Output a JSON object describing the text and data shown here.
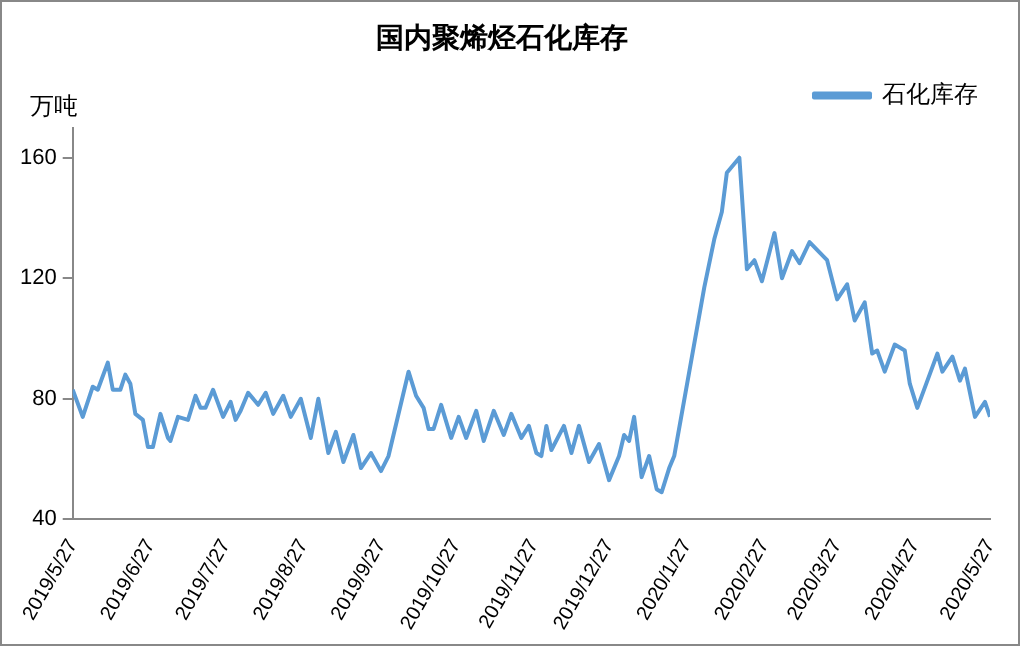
{
  "chart_data": {
    "type": "line",
    "title": "国内聚烯烃石化库存",
    "ylabel": "万吨",
    "x": [
      "2019-05-27",
      "2019-05-31",
      "2019-06-04",
      "2019-06-06",
      "2019-06-10",
      "2019-06-12",
      "2019-06-15",
      "2019-06-17",
      "2019-06-19",
      "2019-06-21",
      "2019-06-24",
      "2019-06-26",
      "2019-06-28",
      "2019-07-01",
      "2019-07-04",
      "2019-07-05",
      "2019-07-08",
      "2019-07-12",
      "2019-07-15",
      "2019-07-17",
      "2019-07-19",
      "2019-07-22",
      "2019-07-26",
      "2019-07-29",
      "2019-07-31",
      "2019-08-02",
      "2019-08-05",
      "2019-08-09",
      "2019-08-12",
      "2019-08-15",
      "2019-08-19",
      "2019-08-22",
      "2019-08-26",
      "2019-08-30",
      "2019-09-02",
      "2019-09-06",
      "2019-09-09",
      "2019-09-12",
      "2019-09-16",
      "2019-09-19",
      "2019-09-23",
      "2019-09-27",
      "2019-09-30",
      "2019-10-08",
      "2019-10-11",
      "2019-10-14",
      "2019-10-16",
      "2019-10-18",
      "2019-10-21",
      "2019-10-25",
      "2019-10-28",
      "2019-10-31",
      "2019-11-04",
      "2019-11-07",
      "2019-11-11",
      "2019-11-15",
      "2019-11-18",
      "2019-11-22",
      "2019-11-25",
      "2019-11-28",
      "2019-11-30",
      "2019-12-02",
      "2019-12-04",
      "2019-12-09",
      "2019-12-12",
      "2019-12-15",
      "2019-12-19",
      "2019-12-23",
      "2019-12-27",
      "2019-12-31",
      "2020-01-02",
      "2020-01-04",
      "2020-01-06",
      "2020-01-09",
      "2020-01-12",
      "2020-01-15",
      "2020-01-17",
      "2020-01-20",
      "2020-01-22",
      "2020-02-03",
      "2020-02-07",
      "2020-02-10",
      "2020-02-12",
      "2020-02-17",
      "2020-02-20",
      "2020-02-23",
      "2020-02-26",
      "2020-03-02",
      "2020-03-05",
      "2020-03-09",
      "2020-03-12",
      "2020-03-16",
      "2020-03-23",
      "2020-03-27",
      "2020-03-31",
      "2020-04-03",
      "2020-04-07",
      "2020-04-10",
      "2020-04-12",
      "2020-04-15",
      "2020-04-19",
      "2020-04-23",
      "2020-04-25",
      "2020-04-28",
      "2020-05-06",
      "2020-05-08",
      "2020-05-12",
      "2020-05-15",
      "2020-05-17",
      "2020-05-21",
      "2020-05-25",
      "2020-05-27"
    ],
    "series": [
      {
        "name": "石化库存",
        "color": "#5b9bd5",
        "values": [
          83,
          74,
          84,
          83,
          92,
          83,
          83,
          88,
          85,
          75,
          73,
          64,
          64,
          75,
          67,
          66,
          74,
          73,
          81,
          77,
          77,
          83,
          74,
          79,
          73,
          76,
          82,
          78,
          82,
          75,
          81,
          74,
          80,
          67,
          80,
          62,
          69,
          59,
          68,
          57,
          62,
          56,
          61,
          89,
          81,
          77,
          70,
          70,
          78,
          67,
          74,
          67,
          76,
          66,
          76,
          68,
          75,
          67,
          71,
          62,
          61,
          71,
          63,
          71,
          62,
          71,
          59,
          65,
          53,
          61,
          68,
          66,
          74,
          54,
          61,
          50,
          49,
          57,
          61,
          117,
          133,
          142,
          155,
          160,
          123,
          126,
          119,
          135,
          120,
          129,
          125,
          132,
          126,
          113,
          118,
          106,
          112,
          95,
          96,
          89,
          98,
          96,
          85,
          77,
          95,
          89,
          94,
          86,
          90,
          74,
          79,
          74
        ]
      }
    ],
    "xlim": [
      "2019-05-27",
      "2020-05-27"
    ],
    "xticks": [
      {
        "value": "2019-05-27",
        "label": "2019/5/27"
      },
      {
        "value": "2019-06-27",
        "label": "2019/6/27"
      },
      {
        "value": "2019-07-27",
        "label": "2019/7/27"
      },
      {
        "value": "2019-08-27",
        "label": "2019/8/27"
      },
      {
        "value": "2019-09-27",
        "label": "2019/9/27"
      },
      {
        "value": "2019-10-27",
        "label": "2019/10/27"
      },
      {
        "value": "2019-11-27",
        "label": "2019/11/27"
      },
      {
        "value": "2019-12-27",
        "label": "2019/12/27"
      },
      {
        "value": "2020-01-27",
        "label": "2020/1/27"
      },
      {
        "value": "2020-02-27",
        "label": "2020/2/27"
      },
      {
        "value": "2020-03-27",
        "label": "2020/3/27"
      },
      {
        "value": "2020-04-27",
        "label": "2020/4/27"
      },
      {
        "value": "2020-05-27",
        "label": "2020/5/27"
      }
    ],
    "ylim": [
      40,
      170
    ],
    "yticks": [
      40,
      80,
      120,
      160
    ],
    "grid": false,
    "legend": "top right",
    "marker": "none",
    "line_style": "solid"
  }
}
